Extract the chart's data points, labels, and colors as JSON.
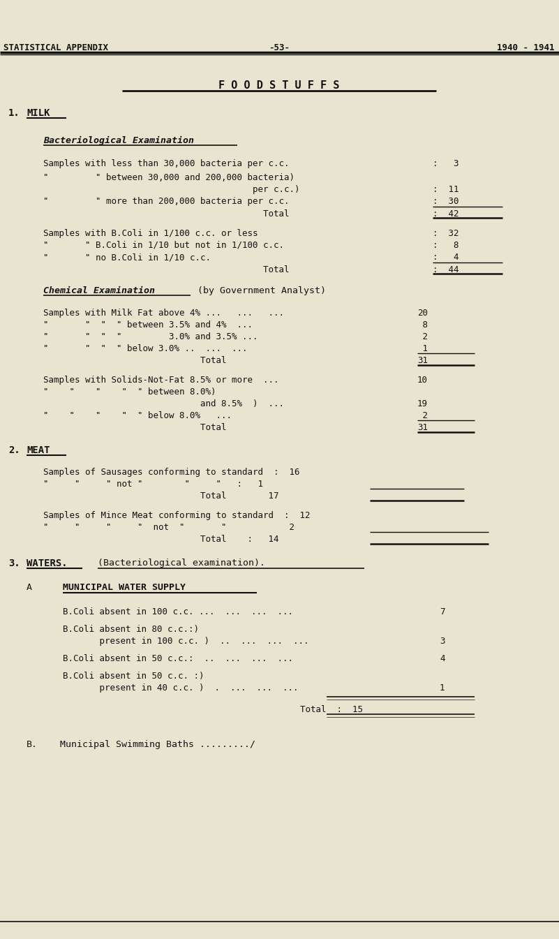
{
  "bg_color": "#e8e4d0",
  "text_color": "#111111",
  "header_left": "STATISTICAL APPENDIX",
  "header_center": "-53-",
  "header_right": "1940 - 1941",
  "title": "F O O D S T U F F S",
  "fig_w": 8.01,
  "fig_h": 13.45,
  "dpi": 100
}
